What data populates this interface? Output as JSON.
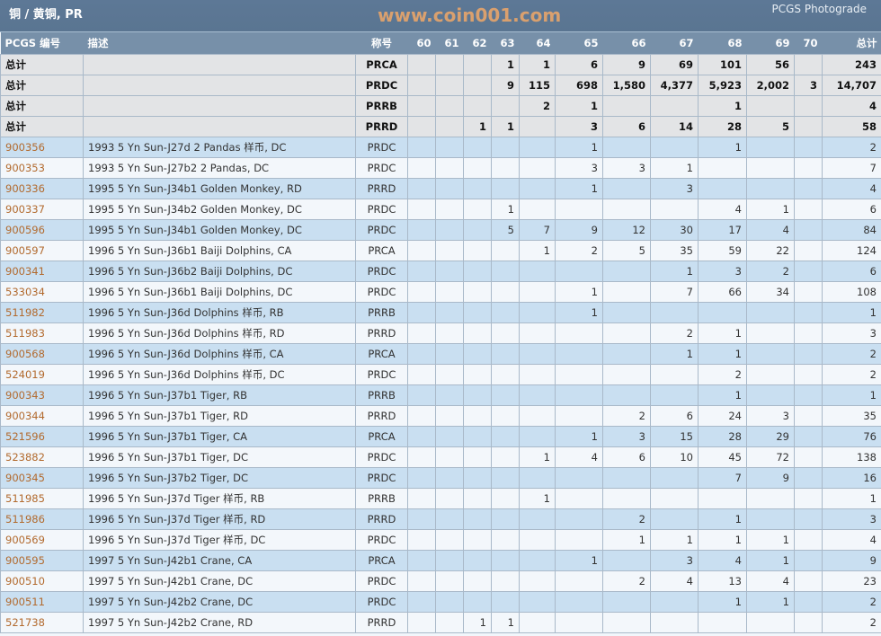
{
  "header": {
    "title": "铜 / 黄铜, PR",
    "brand": "PCGS Photograde"
  },
  "columns": [
    "PCGS 编号",
    "描述",
    "称号",
    "60",
    "61",
    "62",
    "63",
    "64",
    "65",
    "66",
    "67",
    "68",
    "69",
    "70",
    "总计"
  ],
  "totals": [
    [
      "总计",
      "",
      "PRCA",
      "",
      "",
      "",
      "1",
      "1",
      "6",
      "9",
      "69",
      "101",
      "56",
      "",
      "243"
    ],
    [
      "总计",
      "",
      "PRDC",
      "",
      "",
      "",
      "9",
      "115",
      "698",
      "1,580",
      "4,377",
      "5,923",
      "2,002",
      "3",
      "14,707"
    ],
    [
      "总计",
      "",
      "PRRB",
      "",
      "",
      "",
      "",
      "2",
      "1",
      "",
      "",
      "1",
      "",
      "",
      "4"
    ],
    [
      "总计",
      "",
      "PRRD",
      "",
      "",
      "1",
      "1",
      "",
      "3",
      "6",
      "14",
      "28",
      "5",
      "",
      "58"
    ]
  ],
  "rows": [
    [
      "900356",
      "1993 5 Yn Sun-J27d 2 Pandas 样币, DC",
      "PRDC",
      "",
      "",
      "",
      "",
      "",
      "1",
      "",
      "",
      "1",
      "",
      "",
      "2"
    ],
    [
      "900353",
      "1993 5 Yn Sun-J27b2 2 Pandas, DC",
      "PRDC",
      "",
      "",
      "",
      "",
      "",
      "3",
      "3",
      "1",
      "",
      "",
      "",
      "7"
    ],
    [
      "900336",
      "1995 5 Yn Sun-J34b1 Golden Monkey, RD",
      "PRRD",
      "",
      "",
      "",
      "",
      "",
      "1",
      "",
      "3",
      "",
      "",
      "",
      "4"
    ],
    [
      "900337",
      "1995 5 Yn Sun-J34b2 Golden Monkey, DC",
      "PRDC",
      "",
      "",
      "",
      "1",
      "",
      "",
      "",
      "",
      "4",
      "1",
      "",
      "6"
    ],
    [
      "900596",
      "1995 5 Yn Sun-J34b1 Golden Monkey, DC",
      "PRDC",
      "",
      "",
      "",
      "5",
      "7",
      "9",
      "12",
      "30",
      "17",
      "4",
      "",
      "84"
    ],
    [
      "900597",
      "1996 5 Yn Sun-J36b1 Baiji Dolphins, CA",
      "PRCA",
      "",
      "",
      "",
      "",
      "1",
      "2",
      "5",
      "35",
      "59",
      "22",
      "",
      "124"
    ],
    [
      "900341",
      "1996 5 Yn Sun-J36b2 Baiji Dolphins, DC",
      "PRDC",
      "",
      "",
      "",
      "",
      "",
      "",
      "",
      "1",
      "3",
      "2",
      "",
      "6"
    ],
    [
      "533034",
      "1996 5 Yn Sun-J36b1 Baiji Dolphins, DC",
      "PRDC",
      "",
      "",
      "",
      "",
      "",
      "1",
      "",
      "7",
      "66",
      "34",
      "",
      "108"
    ],
    [
      "511982",
      "1996 5 Yn Sun-J36d Dolphins 样币, RB",
      "PRRB",
      "",
      "",
      "",
      "",
      "",
      "1",
      "",
      "",
      "",
      "",
      "",
      "1"
    ],
    [
      "511983",
      "1996 5 Yn Sun-J36d Dolphins 样币, RD",
      "PRRD",
      "",
      "",
      "",
      "",
      "",
      "",
      "",
      "2",
      "1",
      "",
      "",
      "3"
    ],
    [
      "900568",
      "1996 5 Yn Sun-J36d Dolphins 样币, CA",
      "PRCA",
      "",
      "",
      "",
      "",
      "",
      "",
      "",
      "1",
      "1",
      "",
      "",
      "2"
    ],
    [
      "524019",
      "1996 5 Yn Sun-J36d Dolphins 样币, DC",
      "PRDC",
      "",
      "",
      "",
      "",
      "",
      "",
      "",
      "",
      "2",
      "",
      "",
      "2"
    ],
    [
      "900343",
      "1996 5 Yn Sun-J37b1 Tiger, RB",
      "PRRB",
      "",
      "",
      "",
      "",
      "",
      "",
      "",
      "",
      "1",
      "",
      "",
      "1"
    ],
    [
      "900344",
      "1996 5 Yn Sun-J37b1 Tiger, RD",
      "PRRD",
      "",
      "",
      "",
      "",
      "",
      "",
      "2",
      "6",
      "24",
      "3",
      "",
      "35"
    ],
    [
      "521596",
      "1996 5 Yn Sun-J37b1 Tiger, CA",
      "PRCA",
      "",
      "",
      "",
      "",
      "",
      "1",
      "3",
      "15",
      "28",
      "29",
      "",
      "76"
    ],
    [
      "523882",
      "1996 5 Yn Sun-J37b1 Tiger, DC",
      "PRDC",
      "",
      "",
      "",
      "",
      "1",
      "4",
      "6",
      "10",
      "45",
      "72",
      "",
      "138"
    ],
    [
      "900345",
      "1996 5 Yn Sun-J37b2 Tiger, DC",
      "PRDC",
      "",
      "",
      "",
      "",
      "",
      "",
      "",
      "",
      "7",
      "9",
      "",
      "16"
    ],
    [
      "511985",
      "1996 5 Yn Sun-J37d Tiger 样币, RB",
      "PRRB",
      "",
      "",
      "",
      "",
      "1",
      "",
      "",
      "",
      "",
      "",
      "",
      "1"
    ],
    [
      "511986",
      "1996 5 Yn Sun-J37d Tiger 样币, RD",
      "PRRD",
      "",
      "",
      "",
      "",
      "",
      "",
      "2",
      "",
      "1",
      "",
      "",
      "3"
    ],
    [
      "900569",
      "1996 5 Yn Sun-J37d Tiger 样币, DC",
      "PRDC",
      "",
      "",
      "",
      "",
      "",
      "",
      "1",
      "1",
      "1",
      "1",
      "",
      "4"
    ],
    [
      "900595",
      "1997 5 Yn Sun-J42b1 Crane, CA",
      "PRCA",
      "",
      "",
      "",
      "",
      "",
      "1",
      "",
      "3",
      "4",
      "1",
      "",
      "9"
    ],
    [
      "900510",
      "1997 5 Yn Sun-J42b1 Crane, DC",
      "PRDC",
      "",
      "",
      "",
      "",
      "",
      "",
      "2",
      "4",
      "13",
      "4",
      "",
      "23"
    ],
    [
      "900511",
      "1997 5 Yn Sun-J42b2 Crane, DC",
      "PRDC",
      "",
      "",
      "",
      "",
      "",
      "",
      "",
      "",
      "1",
      "1",
      "",
      "2"
    ],
    [
      "521738",
      "1997 5 Yn Sun-J42b2 Crane, RD",
      "PRRD",
      "",
      "",
      "1",
      "1",
      "",
      "",
      "",
      "",
      "",
      "",
      "",
      "2"
    ]
  ],
  "watermark": "www.coin001.com"
}
